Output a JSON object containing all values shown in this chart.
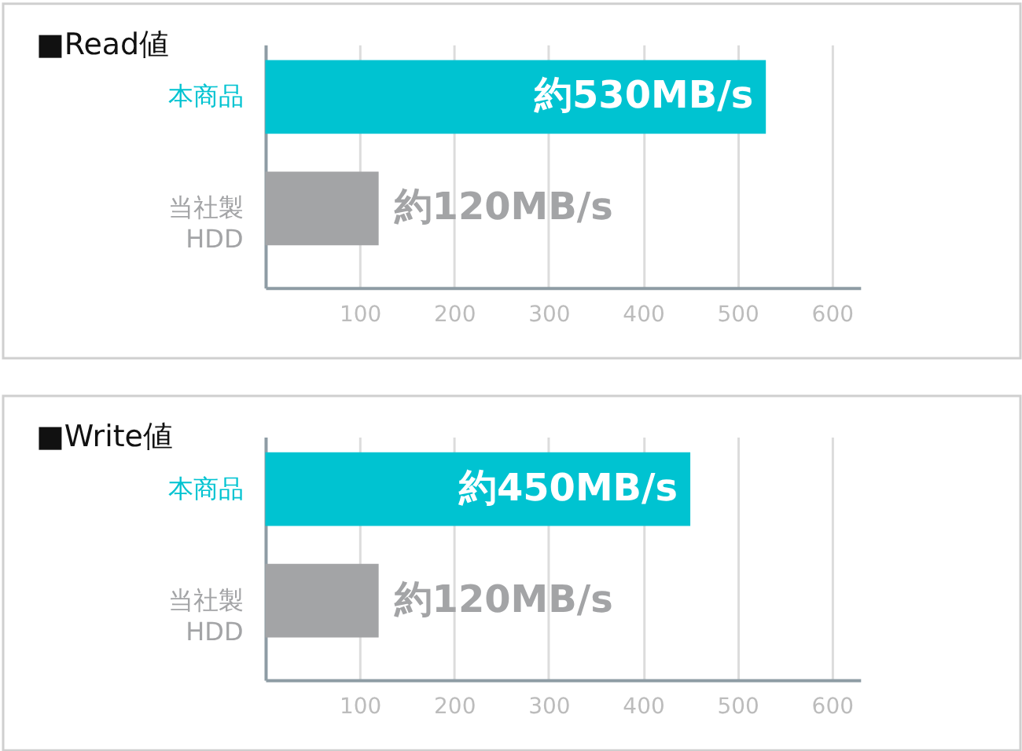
{
  "chart_data": [
    {
      "type": "bar",
      "orientation": "horizontal",
      "title": "■Read値",
      "categories": [
        "本商品",
        "当社製\nHDD"
      ],
      "values": [
        530,
        120
      ],
      "colors": [
        "#00c3d1",
        "#a3a4a6"
      ],
      "value_labels": [
        "約530MB/s",
        "約120MB/s"
      ],
      "xlim": [
        0,
        630
      ],
      "xticks": [
        100,
        200,
        300,
        400,
        500,
        600
      ],
      "grid": "x"
    },
    {
      "type": "bar",
      "orientation": "horizontal",
      "title": "■Write値",
      "categories": [
        "本商品",
        "当社製\nHDD"
      ],
      "values": [
        450,
        120
      ],
      "colors": [
        "#00c3d1",
        "#a3a4a6"
      ],
      "value_labels": [
        "約450MB/s",
        "約120MB/s"
      ],
      "xlim": [
        0,
        630
      ],
      "xticks": [
        100,
        200,
        300,
        400,
        500,
        600
      ],
      "grid": "x"
    }
  ]
}
